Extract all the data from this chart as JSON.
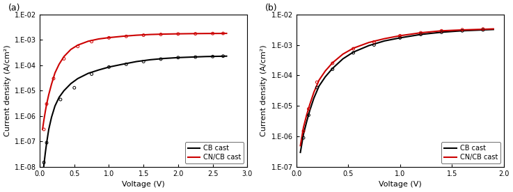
{
  "panel_a": {
    "title": "(a)",
    "xlabel": "Voltage (V)",
    "ylabel": "Current density (A/cm²)",
    "xlim": [
      0,
      3
    ],
    "ylim_log": [
      -8,
      -2
    ],
    "xticks": [
      0,
      0.5,
      1.0,
      1.5,
      2.0,
      2.5,
      3.0
    ],
    "cb_fit_x": [
      0.04,
      0.06,
      0.08,
      0.1,
      0.13,
      0.17,
      0.22,
      0.28,
      0.35,
      0.45,
      0.55,
      0.7,
      0.85,
      1.0,
      1.2,
      1.4,
      1.6,
      1.8,
      2.0,
      2.2,
      2.4,
      2.6,
      2.7
    ],
    "cb_fit_y": [
      3.5e-09,
      1.2e-08,
      3.5e-08,
      9e-08,
      3e-07,
      9e-07,
      2.5e-06,
      5.5e-06,
      1e-05,
      1.9e-05,
      3e-05,
      4.8e-05,
      6.5e-05,
      8.5e-05,
      0.00011,
      0.00014,
      0.000165,
      0.000185,
      0.0002,
      0.00021,
      0.00022,
      0.000225,
      0.000228
    ],
    "cn_fit_x": [
      0.04,
      0.06,
      0.08,
      0.1,
      0.13,
      0.17,
      0.22,
      0.28,
      0.35,
      0.45,
      0.55,
      0.7,
      0.85,
      1.0,
      1.2,
      1.4,
      1.6,
      1.8,
      2.0,
      2.2,
      2.4,
      2.6,
      2.7
    ],
    "cn_fit_y": [
      3e-07,
      7e-07,
      1.5e-06,
      3e-06,
      7e-06,
      1.8e-05,
      5e-05,
      0.00011,
      0.00022,
      0.00042,
      0.00062,
      0.00088,
      0.00108,
      0.00122,
      0.00138,
      0.00152,
      0.00162,
      0.00168,
      0.00172,
      0.00175,
      0.00177,
      0.00178,
      0.00179
    ],
    "cb_scatter_x": [
      0.06,
      0.1,
      0.3,
      0.5,
      0.75,
      1.0,
      1.25,
      1.5,
      1.75,
      2.0,
      2.25,
      2.5,
      2.65
    ],
    "cb_scatter_y": [
      1.5e-08,
      9e-08,
      4.5e-06,
      1.3e-05,
      4.5e-05,
      8.5e-05,
      0.00011,
      0.00014,
      0.000175,
      0.0002,
      0.00021,
      0.00022,
      0.000228
    ],
    "cn_scatter_x": [
      0.06,
      0.1,
      0.2,
      0.35,
      0.55,
      0.75,
      1.0,
      1.25,
      1.5,
      1.75,
      2.0,
      2.25,
      2.5,
      2.65
    ],
    "cn_scatter_y": [
      3e-07,
      3e-06,
      3e-05,
      0.00018,
      0.00055,
      0.00085,
      0.0012,
      0.00137,
      0.00152,
      0.00163,
      0.0017,
      0.00173,
      0.00177,
      0.00179
    ],
    "cb_color": "#000000",
    "cn_color": "#cc0000",
    "legend_cb": "CB cast",
    "legend_cn": "CN/CB cast"
  },
  "panel_b": {
    "title": "(b)",
    "xlabel": "Voltage (V)",
    "ylabel": "Current density (A/cm²)",
    "xlim": [
      0,
      2
    ],
    "ylim_log": [
      -7,
      -2
    ],
    "xticks": [
      0,
      0.5,
      1.0,
      1.5,
      2.0
    ],
    "cb_fit_x": [
      0.04,
      0.07,
      0.1,
      0.13,
      0.17,
      0.22,
      0.28,
      0.35,
      0.45,
      0.55,
      0.7,
      0.85,
      1.0,
      1.2,
      1.4,
      1.6,
      1.8,
      1.9
    ],
    "cb_fit_y": [
      3e-07,
      1.2e-06,
      3e-06,
      7e-06,
      1.8e-05,
      4.5e-05,
      9e-05,
      0.00017,
      0.00035,
      0.00058,
      0.00095,
      0.00135,
      0.0017,
      0.0022,
      0.0026,
      0.0029,
      0.0031,
      0.0032
    ],
    "cn_fit_x": [
      0.04,
      0.07,
      0.1,
      0.13,
      0.17,
      0.22,
      0.28,
      0.35,
      0.45,
      0.55,
      0.7,
      0.85,
      1.0,
      1.2,
      1.4,
      1.6,
      1.8,
      1.9
    ],
    "cn_fit_y": [
      5e-07,
      2e-06,
      5e-06,
      1.1e-05,
      2.8e-05,
      7e-05,
      0.00014,
      0.00026,
      0.0005,
      0.00078,
      0.0012,
      0.0016,
      0.002,
      0.0025,
      0.0029,
      0.0031,
      0.00325,
      0.00335
    ],
    "cb_scatter_x": [
      0.07,
      0.12,
      0.2,
      0.35,
      0.55,
      0.75,
      1.0,
      1.2,
      1.4,
      1.6,
      1.8
    ],
    "cb_scatter_y": [
      9e-07,
      5e-06,
      4e-05,
      0.00016,
      0.00055,
      0.001,
      0.0017,
      0.0022,
      0.0026,
      0.0029,
      0.0031
    ],
    "cn_scatter_x": [
      0.07,
      0.12,
      0.2,
      0.35,
      0.55,
      0.75,
      1.0,
      1.2,
      1.4,
      1.6,
      1.8
    ],
    "cn_scatter_y": [
      1.5e-06,
      8e-06,
      6e-05,
      0.00025,
      0.00075,
      0.00125,
      0.002,
      0.0025,
      0.0029,
      0.00315,
      0.00332
    ],
    "cb_color": "#000000",
    "cn_color": "#cc0000",
    "legend_cb": "CB cast",
    "legend_cn": "CN/CB cast"
  },
  "bg_color": "#ffffff",
  "figure_bg": "#ffffff"
}
